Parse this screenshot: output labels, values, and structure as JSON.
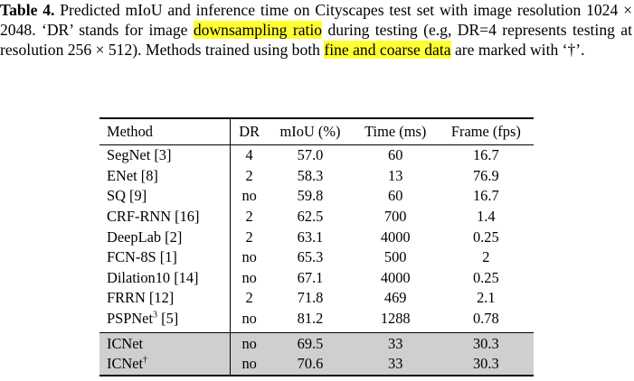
{
  "caption": {
    "label": "Table 4.",
    "part1": " Predicted mIoU and inference time on Cityscapes test set with image resolution 1024 × 2048. ‘DR’ stands for image ",
    "hl1": "downsampling ratio",
    "part2": " during testing (e.g, DR=4 represents testing at resolution 256 × 512). Methods trained using both ",
    "hl2": "fine and coarse data",
    "part3": " are marked with ‘†’."
  },
  "table": {
    "headers": [
      "Method",
      "DR",
      "mIoU (%)",
      "Time (ms)",
      "Frame (fps)"
    ],
    "rows": [
      [
        "SegNet [3]",
        "4",
        "57.0",
        "60",
        "16.7"
      ],
      [
        "ENet [8]",
        "2",
        "58.3",
        "13",
        "76.9"
      ],
      [
        "SQ [9]",
        "no",
        "59.8",
        "60",
        "16.7"
      ],
      [
        "CRF-RNN [16]",
        "2",
        "62.5",
        "700",
        "1.4"
      ],
      [
        "DeepLab [2]",
        "2",
        "63.1",
        "4000",
        "0.25"
      ],
      [
        "FCN-8S [1]",
        "no",
        "65.3",
        "500",
        "2"
      ],
      [
        "Dilation10 [14]",
        "no",
        "67.1",
        "4000",
        "0.25"
      ],
      [
        "FRRN [12]",
        "2",
        "71.8",
        "469",
        "2.1"
      ],
      [
        "PSPNet",
        "no",
        "81.2",
        "1288",
        "0.78"
      ]
    ],
    "pspnet_sup": "3",
    "pspnet_ref": " [5]",
    "ours": [
      [
        "ICNet",
        "no",
        "69.5",
        "33",
        "30.3"
      ],
      [
        "ICNet",
        "no",
        "70.6",
        "33",
        "30.3"
      ]
    ],
    "dagger": "†"
  }
}
